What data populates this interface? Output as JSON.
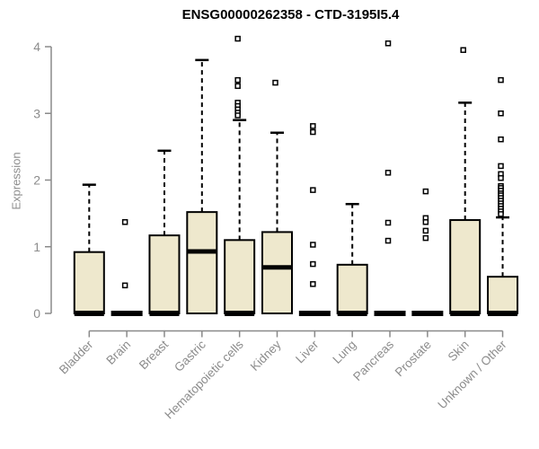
{
  "chart_data": {
    "type": "boxplot",
    "title": "ENSG00000262358 - CTD-3195I5.4",
    "ylabel": "Expression",
    "ylim": [
      0,
      4
    ],
    "yticks": [
      0,
      1,
      2,
      3,
      4
    ],
    "grid": false,
    "legend": "none",
    "categories": [
      "Bladder",
      "Brain",
      "Breast",
      "Gastric",
      "Hematopoietic cells",
      "Kidney",
      "Liver",
      "Lung",
      "Pancreas",
      "Prostate",
      "Skin",
      "Unknown / Other"
    ],
    "series": [
      {
        "category": "Bladder",
        "q1": 0,
        "median": 0,
        "q3": 0.92,
        "whisker_low": 0,
        "whisker_high": 1.93,
        "outliers": []
      },
      {
        "category": "Brain",
        "q1": 0,
        "median": 0,
        "q3": 0,
        "whisker_low": 0,
        "whisker_high": 0,
        "outliers": [
          1.37,
          0.42
        ]
      },
      {
        "category": "Breast",
        "q1": 0,
        "median": 0,
        "q3": 1.17,
        "whisker_low": 0,
        "whisker_high": 2.44,
        "outliers": []
      },
      {
        "category": "Gastric",
        "q1": 0,
        "median": 0.93,
        "q3": 1.52,
        "whisker_low": 0,
        "whisker_high": 3.8,
        "outliers": []
      },
      {
        "category": "Hematopoietic cells",
        "q1": 0,
        "median": 0,
        "q3": 1.1,
        "whisker_low": 0,
        "whisker_high": 2.9,
        "outliers": [
          4.12,
          3.5,
          3.41,
          3.16,
          3.11,
          3.06,
          3.01,
          2.97
        ]
      },
      {
        "category": "Kidney",
        "q1": 0,
        "median": 0.69,
        "q3": 1.22,
        "whisker_low": 0,
        "whisker_high": 2.71,
        "outliers": [
          3.46
        ]
      },
      {
        "category": "Liver",
        "q1": 0,
        "median": 0,
        "q3": 0,
        "whisker_low": 0,
        "whisker_high": 0,
        "outliers": [
          2.81,
          2.72,
          1.85,
          1.03,
          0.74,
          0.44
        ]
      },
      {
        "category": "Lung",
        "q1": 0,
        "median": 0,
        "q3": 0.73,
        "whisker_low": 0,
        "whisker_high": 1.64,
        "outliers": []
      },
      {
        "category": "Pancreas",
        "q1": 0,
        "median": 0,
        "q3": 0,
        "whisker_low": 0,
        "whisker_high": 0,
        "outliers": [
          4.05,
          2.11,
          1.36,
          1.09
        ]
      },
      {
        "category": "Prostate",
        "q1": 0,
        "median": 0,
        "q3": 0,
        "whisker_low": 0,
        "whisker_high": 0,
        "outliers": [
          1.83,
          1.43,
          1.37,
          1.24,
          1.13
        ]
      },
      {
        "category": "Skin",
        "q1": 0,
        "median": 0,
        "q3": 1.4,
        "whisker_low": 0,
        "whisker_high": 3.16,
        "outliers": [
          3.95
        ]
      },
      {
        "category": "Unknown / Other",
        "q1": 0,
        "median": 0,
        "q3": 0.55,
        "whisker_low": 0,
        "whisker_high": 1.44,
        "outliers": [
          3.5,
          3.0,
          2.61,
          2.21,
          2.09,
          2.03,
          1.91,
          1.88,
          1.84,
          1.8,
          1.77,
          1.73,
          1.69,
          1.65,
          1.61,
          1.57,
          1.53,
          1.49
        ]
      }
    ],
    "colors": {
      "box_fill": "#EEE8CD",
      "box_stroke": "#000000",
      "median": "#000000",
      "whisker": "#000000",
      "outlier_stroke": "#000000",
      "outlier_fill": "#ffffff",
      "axis_line": "#8a8a8a",
      "tick_label": "#8c8c8c",
      "title": "#000000"
    }
  }
}
